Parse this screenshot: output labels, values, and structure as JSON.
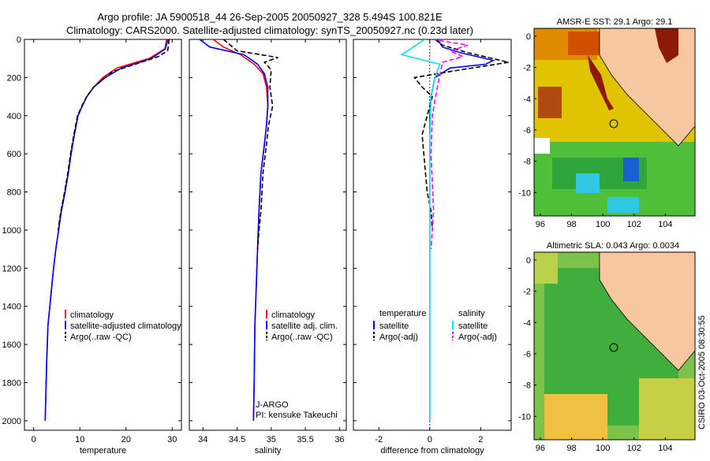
{
  "header": {
    "line1": "Argo profile: JA 5900518_44 26-Sep-2005 20050927_328 5.494S 100.821E",
    "line2": "Climatology: CARS2000. Satellite-adjusted climatology: synTS_20050927.nc (0.23d later)"
  },
  "side_text": "CSIRO 03-Oct-2005 08:30:55",
  "colors": {
    "clim": "#ff0000",
    "sat": "#0000ff",
    "argo": "#000000",
    "sal_sat": "#00e6e6",
    "sal_argo": "#ff00ff",
    "land": "#f7c7a0"
  },
  "chart_data": [
    {
      "type": "line",
      "id": "temperature",
      "xlabel": "temperature",
      "ylabel": "",
      "xlim": [
        -2,
        32
      ],
      "ylim": [
        2050,
        0
      ],
      "xticks": [
        0,
        10,
        20,
        30
      ],
      "yticks": [
        0,
        200,
        400,
        600,
        800,
        1000,
        1200,
        1400,
        1600,
        1800,
        2000
      ],
      "legend": [
        "climatology",
        "satellite-adjusted climatology",
        "Argo(..raw -QC)"
      ],
      "series": [
        {
          "name": "climatology",
          "color": "#ff0000",
          "x": [
            28.8,
            28.4,
            25,
            18,
            15,
            13,
            11.5,
            10.5,
            9.6,
            8.8,
            8.1,
            7.5,
            6.8,
            6,
            5.4,
            4.8,
            4.3,
            3.9,
            3.5,
            3.1,
            2.8,
            2.5
          ],
          "y": [
            0,
            50,
            100,
            150,
            200,
            250,
            300,
            350,
            400,
            500,
            600,
            700,
            800,
            900,
            1000,
            1100,
            1200,
            1300,
            1400,
            1500,
            1700,
            2000
          ]
        },
        {
          "name": "satellite-adjusted climatology",
          "color": "#0000ff",
          "x": [
            29.1,
            28.5,
            25.5,
            19,
            15.5,
            13,
            11.5,
            10.5,
            9.6,
            8.8,
            8.1,
            7.5,
            6.8,
            6,
            5.4,
            4.8,
            4.3,
            3.9,
            3.5,
            3.1,
            2.8,
            2.5
          ],
          "y": [
            0,
            50,
            100,
            150,
            200,
            250,
            300,
            350,
            400,
            500,
            600,
            700,
            800,
            900,
            1000,
            1100,
            1200,
            1300,
            1400,
            1500,
            1700,
            2000
          ]
        },
        {
          "name": "Argo(..raw -QC)",
          "color": "#000000",
          "dashed": true,
          "x": [
            29.3,
            29.2,
            29,
            27,
            22,
            17,
            15,
            13,
            11.5,
            10.4,
            9.5,
            8.7,
            8,
            7.4,
            6.7,
            5.9,
            5.3
          ],
          "y": [
            0,
            30,
            60,
            90,
            130,
            170,
            210,
            250,
            300,
            350,
            400,
            500,
            600,
            700,
            800,
            900,
            1000
          ]
        }
      ]
    },
    {
      "type": "line",
      "id": "salinity",
      "xlabel": "salinity",
      "ylabel": "",
      "xlim": [
        33.8,
        36.1
      ],
      "ylim": [
        2050,
        0
      ],
      "xticks": [
        34,
        34.5,
        35,
        35.5,
        36
      ],
      "yticks": [
        0,
        200,
        400,
        600,
        800,
        1000,
        1200,
        1400,
        1600,
        1800,
        2000
      ],
      "legend": [
        "climatology",
        "satellite adj. clim.",
        "Argo(..raw -QC)"
      ],
      "annotations": [
        "J-ARGO",
        "PI: kensuke Takeuchi"
      ],
      "series": [
        {
          "name": "climatology",
          "color": "#ff0000",
          "x": [
            34.15,
            34.3,
            34.55,
            34.75,
            34.88,
            34.93,
            34.95,
            34.93,
            34.9,
            34.85,
            34.82,
            34.8,
            34.78,
            34.76,
            34.75,
            34.74
          ],
          "y": [
            0,
            40,
            80,
            130,
            180,
            250,
            350,
            450,
            550,
            700,
            900,
            1100,
            1300,
            1500,
            1800,
            2000
          ]
        },
        {
          "name": "satellite adj. clim.",
          "color": "#0000ff",
          "x": [
            33.95,
            34.1,
            34.6,
            34.8,
            34.9,
            34.95,
            34.95,
            34.93,
            34.9,
            34.85,
            34.82,
            34.8,
            34.78,
            34.76,
            34.75,
            34.74
          ],
          "y": [
            0,
            40,
            80,
            130,
            180,
            250,
            350,
            450,
            550,
            700,
            900,
            1100,
            1300,
            1500,
            1800,
            2000
          ]
        },
        {
          "name": "Argo(..raw -QC)",
          "color": "#000000",
          "dashed": true,
          "x": [
            34.3,
            34.5,
            34.85,
            35.1,
            34.9,
            35.0,
            34.98,
            35.02,
            34.96,
            34.93,
            34.88,
            34.85,
            34.82,
            34.8
          ],
          "y": [
            0,
            60,
            80,
            95,
            120,
            160,
            250,
            350,
            450,
            550,
            700,
            900,
            1000,
            1100
          ]
        }
      ]
    },
    {
      "type": "line",
      "id": "difference",
      "xlabel": "difference from climatology",
      "ylabel": "",
      "xlim": [
        -3,
        3.2
      ],
      "ylim": [
        2050,
        0
      ],
      "xticks": [
        -2,
        0,
        2
      ],
      "yticks": [
        0,
        200,
        400,
        600,
        800,
        1000,
        1200,
        1400,
        1600,
        1800,
        2000
      ],
      "legend_headers": [
        "temperature",
        "salinity"
      ],
      "legend": [
        "satellite",
        "Argo(-adj)",
        "satellite",
        "Argo(-adj)"
      ],
      "series": [
        {
          "name": "temperature satellite",
          "color": "#0000ff",
          "x": [
            0.3,
            0.5,
            1.2,
            2.5,
            2.2,
            0.8,
            0.2,
            0.05,
            0,
            0,
            0,
            0,
            0,
            0
          ],
          "y": [
            0,
            40,
            70,
            110,
            130,
            150,
            200,
            300,
            400,
            600,
            800,
            1200,
            1600,
            2000
          ]
        },
        {
          "name": "temperature Argo(-adj)",
          "color": "#000000",
          "dashed": true,
          "x": [
            0.2,
            0.5,
            1.5,
            3.1,
            1.2,
            -0.6,
            -0.3,
            0.1,
            -0.1,
            -0.3,
            -0.2,
            -0.1,
            0.05,
            0.1
          ],
          "y": [
            0,
            30,
            70,
            120,
            160,
            200,
            250,
            300,
            400,
            500,
            650,
            800,
            900,
            1000
          ]
        },
        {
          "name": "salinity satellite",
          "color": "#00e6e6",
          "x": [
            -0.2,
            -1.1,
            0.4,
            0.2,
            0.05,
            0,
            0,
            0,
            0
          ],
          "y": [
            0,
            80,
            130,
            200,
            300,
            500,
            800,
            1200,
            2000
          ]
        },
        {
          "name": "salinity Argo(-adj)",
          "color": "#ff00ff",
          "dashed": true,
          "x": [
            0.1,
            1.5,
            0.8,
            1.3,
            0.5,
            0.3,
            0.1,
            0.05,
            0.15,
            0.05
          ],
          "y": [
            0,
            30,
            60,
            90,
            120,
            250,
            400,
            600,
            900,
            1100
          ]
        }
      ]
    },
    {
      "type": "heatmap",
      "id": "sst-map",
      "title": "AMSR-E SST: 29.1 Argo: 29.1",
      "xlim": [
        95.6,
        105.9
      ],
      "ylim": [
        -11.5,
        0.5
      ],
      "xticks": [
        96,
        98,
        100,
        102,
        104
      ],
      "yticks": [
        0,
        -2,
        -4,
        -6,
        -8,
        -10
      ],
      "profile_location": [
        100.821,
        -5.494
      ]
    },
    {
      "type": "heatmap",
      "id": "sla-map",
      "title": "Altimetric SLA: 0.043 Argo: 0.0034",
      "xlim": [
        95.6,
        105.9
      ],
      "ylim": [
        -11.5,
        0.5
      ],
      "xticks": [
        96,
        98,
        100,
        102,
        104
      ],
      "yticks": [
        0,
        -2,
        -4,
        -6,
        -8,
        -10
      ],
      "profile_location": [
        100.821,
        -5.494
      ]
    }
  ]
}
